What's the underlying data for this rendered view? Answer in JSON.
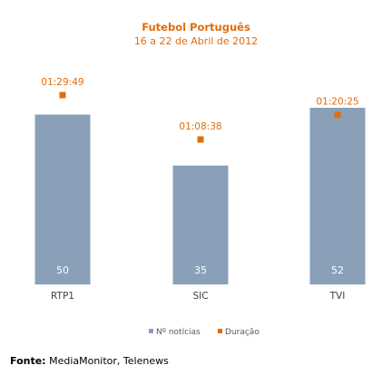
{
  "chart_data": {
    "type": "bar",
    "title": "Futebol Português",
    "subtitle": "16 a 22 de Abril de 2012",
    "categories": [
      "RTP1",
      "SIC",
      "TVI"
    ],
    "series": [
      {
        "name": "Nº notícias",
        "type": "bar",
        "values": [
          50,
          35,
          52
        ],
        "color": "#8aa0b8"
      },
      {
        "name": "Duração",
        "type": "scatter",
        "values": [
          "01:29:49",
          "01:08:38",
          "01:20:25"
        ],
        "color": "#e36c0a"
      }
    ],
    "bar_ylim": [
      0,
      60
    ],
    "legend": "bottom",
    "grid": false
  },
  "source": {
    "label": "Fonte:",
    "text": "MediaMonitor, Telenews"
  }
}
